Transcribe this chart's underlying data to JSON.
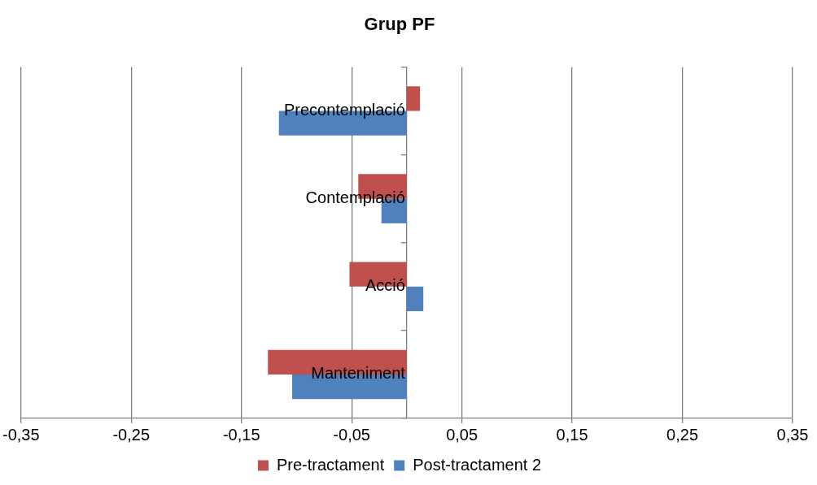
{
  "chart_data": {
    "type": "bar",
    "orientation": "horizontal",
    "title": "Grup PF",
    "categories": [
      "Precontemplació",
      "Contemplació",
      "Acció",
      "Manteniment"
    ],
    "series": [
      {
        "name": "Pre-tractament",
        "color": "#c0504d",
        "values": [
          0.012,
          -0.044,
          -0.052,
          -0.126
        ]
      },
      {
        "name": "Post-tractament 2",
        "color": "#4f81bd",
        "values": [
          -0.116,
          -0.023,
          0.015,
          -0.104
        ]
      }
    ],
    "xlim": [
      -0.35,
      0.35
    ],
    "xticks": [
      {
        "value": -0.35,
        "label": "-0,35"
      },
      {
        "value": -0.25,
        "label": "-0,25"
      },
      {
        "value": -0.15,
        "label": "-0,15"
      },
      {
        "value": -0.05,
        "label": "-0,05"
      },
      {
        "value": 0.05,
        "label": "0,05"
      },
      {
        "value": 0.15,
        "label": "0,15"
      },
      {
        "value": 0.25,
        "label": "0,25"
      },
      {
        "value": 0.35,
        "label": "0,35"
      }
    ],
    "grid": "x",
    "legend": "bottom"
  }
}
